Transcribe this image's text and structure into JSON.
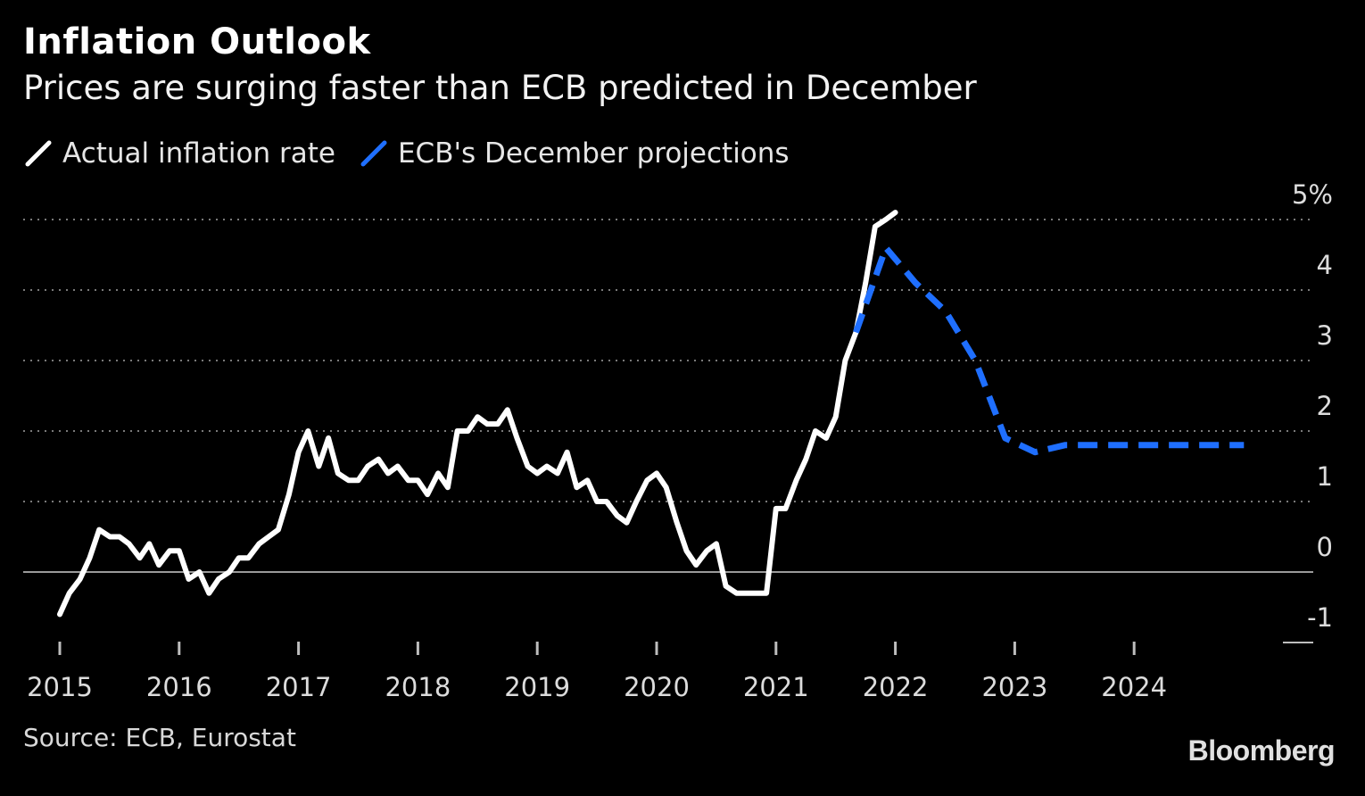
{
  "header": {
    "title": "Inflation Outlook",
    "subtitle": "Prices are surging faster than ECB predicted in December"
  },
  "legend": {
    "actual_label": "Actual inflation rate",
    "projection_label": "ECB's December projections"
  },
  "footer": {
    "source": "Source: ECB, Eurostat",
    "brand": "Bloomberg"
  },
  "colors": {
    "background": "#000000",
    "actual": "#ffffff",
    "projection": "#1f6fff",
    "grid": "#7a7a7a"
  },
  "chart_data": {
    "type": "line",
    "ylim": [
      -1,
      5
    ],
    "xlim": [
      2015,
      2025
    ],
    "y_ticks": [
      "5%",
      "4",
      "3",
      "2",
      "1",
      "0",
      "-1"
    ],
    "y_tick_values": [
      5,
      4,
      3,
      2,
      1,
      0,
      -1
    ],
    "x_ticks": [
      "2015",
      "2016",
      "2017",
      "2018",
      "2019",
      "2020",
      "2021",
      "2022",
      "2023",
      "2024"
    ],
    "x_tick_values": [
      2015,
      2016,
      2017,
      2018,
      2019,
      2020,
      2021,
      2022,
      2023,
      2024
    ],
    "grid": true,
    "legend_position": "top-left",
    "series": [
      {
        "name": "Actual inflation rate",
        "style": "solid",
        "x": [
          2015.0,
          2015.08,
          2015.17,
          2015.25,
          2015.33,
          2015.42,
          2015.5,
          2015.58,
          2015.67,
          2015.75,
          2015.83,
          2015.92,
          2016.0,
          2016.08,
          2016.17,
          2016.25,
          2016.33,
          2016.42,
          2016.5,
          2016.58,
          2016.67,
          2016.75,
          2016.83,
          2016.92,
          2017.0,
          2017.08,
          2017.17,
          2017.25,
          2017.33,
          2017.42,
          2017.5,
          2017.58,
          2017.67,
          2017.75,
          2017.83,
          2017.92,
          2018.0,
          2018.08,
          2018.17,
          2018.25,
          2018.33,
          2018.42,
          2018.5,
          2018.58,
          2018.67,
          2018.75,
          2018.83,
          2018.92,
          2019.0,
          2019.08,
          2019.17,
          2019.25,
          2019.33,
          2019.42,
          2019.5,
          2019.58,
          2019.67,
          2019.75,
          2019.83,
          2019.92,
          2020.0,
          2020.08,
          2020.17,
          2020.25,
          2020.33,
          2020.42,
          2020.5,
          2020.58,
          2020.67,
          2020.75,
          2020.83,
          2020.92,
          2021.0,
          2021.08,
          2021.17,
          2021.25,
          2021.33,
          2021.42,
          2021.5,
          2021.58,
          2021.67,
          2021.75,
          2021.83,
          2021.92,
          2022.0
        ],
        "values": [
          -0.6,
          -0.3,
          -0.1,
          0.2,
          0.6,
          0.5,
          0.5,
          0.4,
          0.2,
          0.4,
          0.1,
          0.3,
          0.3,
          -0.1,
          0.0,
          -0.3,
          -0.1,
          0.0,
          0.2,
          0.2,
          0.4,
          0.5,
          0.6,
          1.1,
          1.7,
          2.0,
          1.5,
          1.9,
          1.4,
          1.3,
          1.3,
          1.5,
          1.6,
          1.4,
          1.5,
          1.3,
          1.3,
          1.1,
          1.4,
          1.2,
          2.0,
          2.0,
          2.2,
          2.1,
          2.1,
          2.3,
          1.9,
          1.5,
          1.4,
          1.5,
          1.4,
          1.7,
          1.2,
          1.3,
          1.0,
          1.0,
          0.8,
          0.7,
          1.0,
          1.3,
          1.4,
          1.2,
          0.7,
          0.3,
          0.1,
          0.3,
          0.4,
          -0.2,
          -0.3,
          -0.3,
          -0.3,
          -0.3,
          0.9,
          0.9,
          1.3,
          1.6,
          2.0,
          1.9,
          2.2,
          3.0,
          3.4,
          4.1,
          4.9,
          5.0,
          5.1
        ]
      },
      {
        "name": "ECB's December projections",
        "style": "dashed",
        "x": [
          2021.67,
          2021.92,
          2022.17,
          2022.42,
          2022.67,
          2022.92,
          2023.17,
          2023.42,
          2023.67,
          2023.92,
          2024.17,
          2024.42,
          2024.67,
          2024.92
        ],
        "values": [
          3.4,
          4.6,
          4.1,
          3.7,
          3.0,
          1.9,
          1.7,
          1.8,
          1.8,
          1.8,
          1.8,
          1.8,
          1.8,
          1.8
        ]
      }
    ]
  }
}
